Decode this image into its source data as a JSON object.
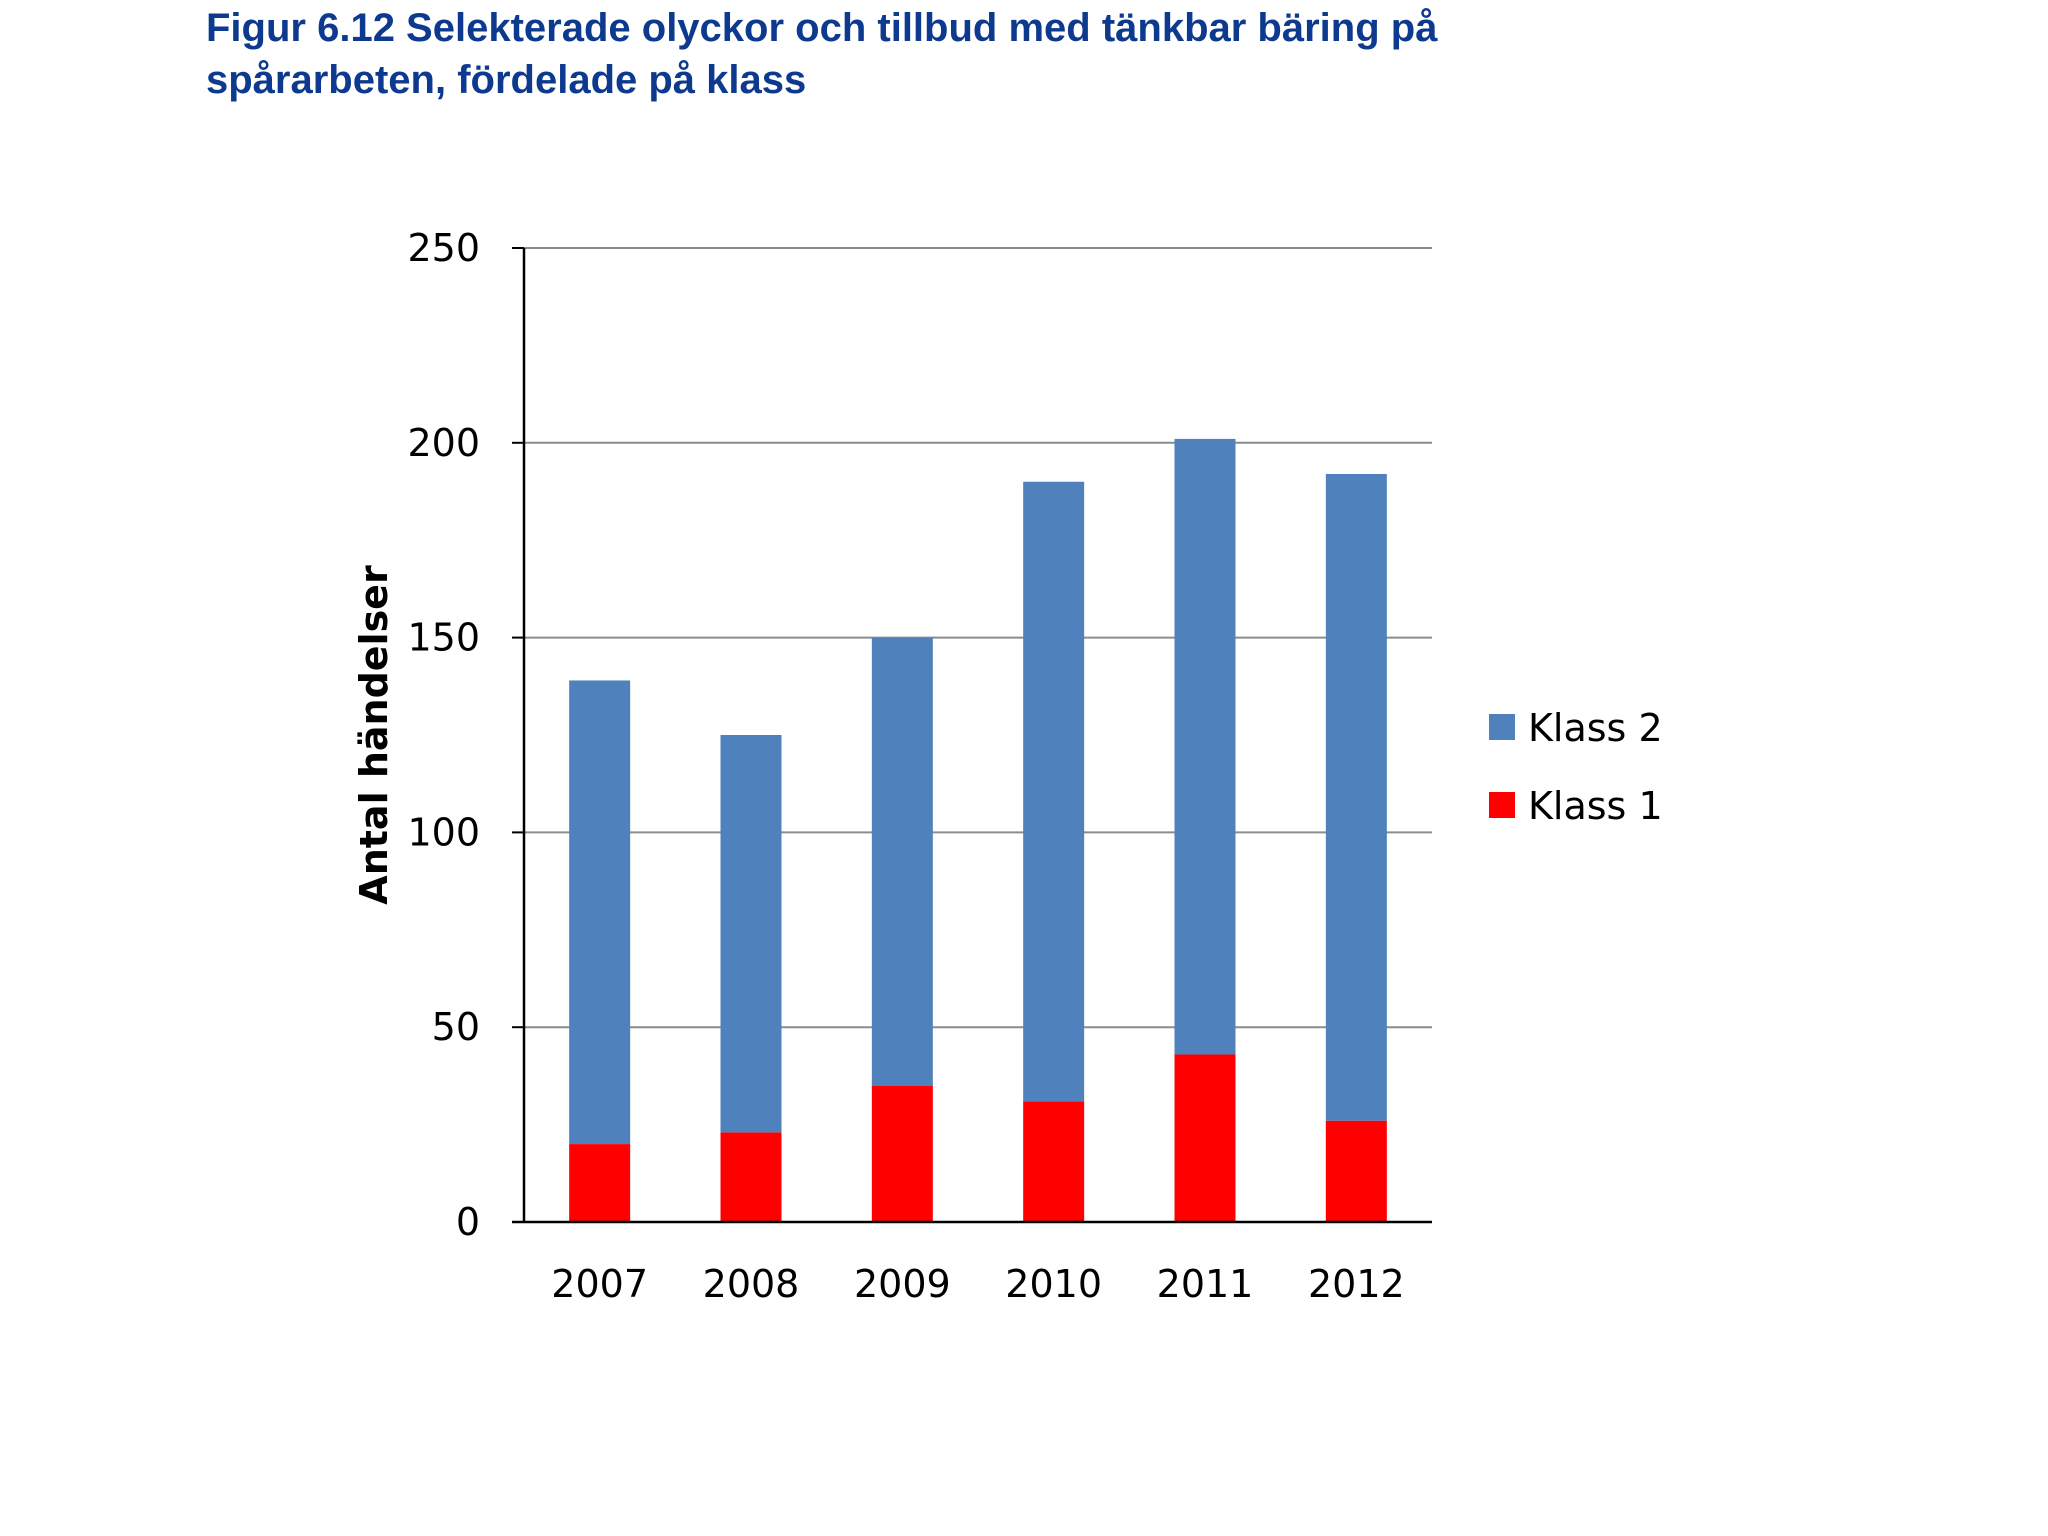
{
  "title_line1": "Figur 6.12 Selekterade olyckor och tillbud med tänkbar bäring på",
  "title_line2": "spårarbeten, fördelade på klass",
  "chart_data": {
    "type": "bar",
    "stacked": true,
    "title": "Figur 6.12 Selekterade olyckor och tillbud med tänkbar bäring på spårarbeten, fördelade på klass",
    "categories": [
      "2007",
      "2008",
      "2009",
      "2010",
      "2011",
      "2012"
    ],
    "series": [
      {
        "name": "Klass 1",
        "color": "#ff0000",
        "values": [
          20,
          23,
          35,
          31,
          43,
          26
        ]
      },
      {
        "name": "Klass 2",
        "color": "#4f81bd",
        "values": [
          119,
          102,
          115,
          159,
          158,
          166
        ]
      }
    ],
    "xlabel": "",
    "ylabel": "Antal händelser",
    "ylim": [
      0,
      250
    ],
    "yticks": [
      0,
      50,
      100,
      150,
      200,
      250
    ],
    "grid": true,
    "legend": "right",
    "legend_order": [
      "Klass 2",
      "Klass 1"
    ]
  }
}
